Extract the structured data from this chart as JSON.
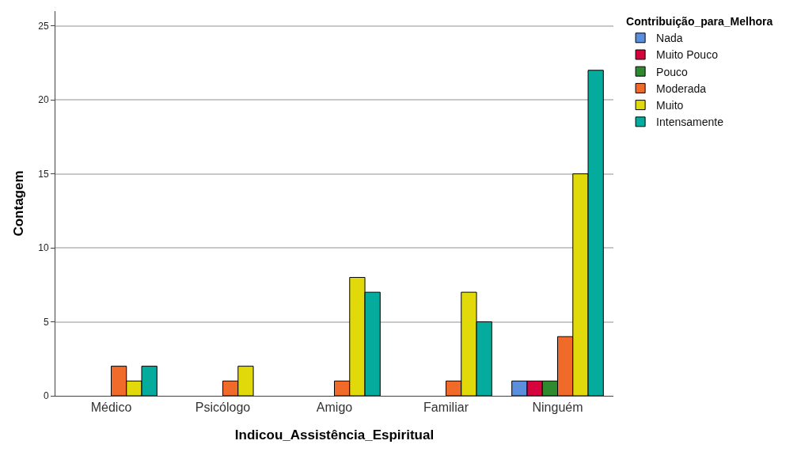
{
  "chart_data": {
    "type": "bar",
    "xlabel": "Indicou_Assistência_Espiritual",
    "ylabel": "Contagem",
    "legend_title": "Contribuição_para_Melhora",
    "categories": [
      "Médico",
      "Psicólogo",
      "Amigo",
      "Familiar",
      "Ninguém"
    ],
    "series": [
      {
        "name": "Nada",
        "color": "#5b8fdc",
        "values": [
          null,
          null,
          null,
          null,
          1
        ]
      },
      {
        "name": "Muito Pouco",
        "color": "#d6043c",
        "values": [
          null,
          null,
          null,
          null,
          1
        ]
      },
      {
        "name": "Pouco",
        "color": "#2f8a2f",
        "values": [
          null,
          null,
          null,
          null,
          1
        ]
      },
      {
        "name": "Moderada",
        "color": "#f06a2a",
        "values": [
          2,
          1,
          1,
          1,
          4
        ]
      },
      {
        "name": "Muito",
        "color": "#e2d90a",
        "values": [
          1,
          2,
          8,
          7,
          15
        ]
      },
      {
        "name": "Intensamente",
        "color": "#05ab9c",
        "values": [
          2,
          null,
          7,
          5,
          22
        ]
      }
    ],
    "ylim": [
      0,
      26
    ],
    "yticks": [
      0,
      5,
      10,
      15,
      20,
      25
    ],
    "grid": "y",
    "legend": "top right"
  }
}
